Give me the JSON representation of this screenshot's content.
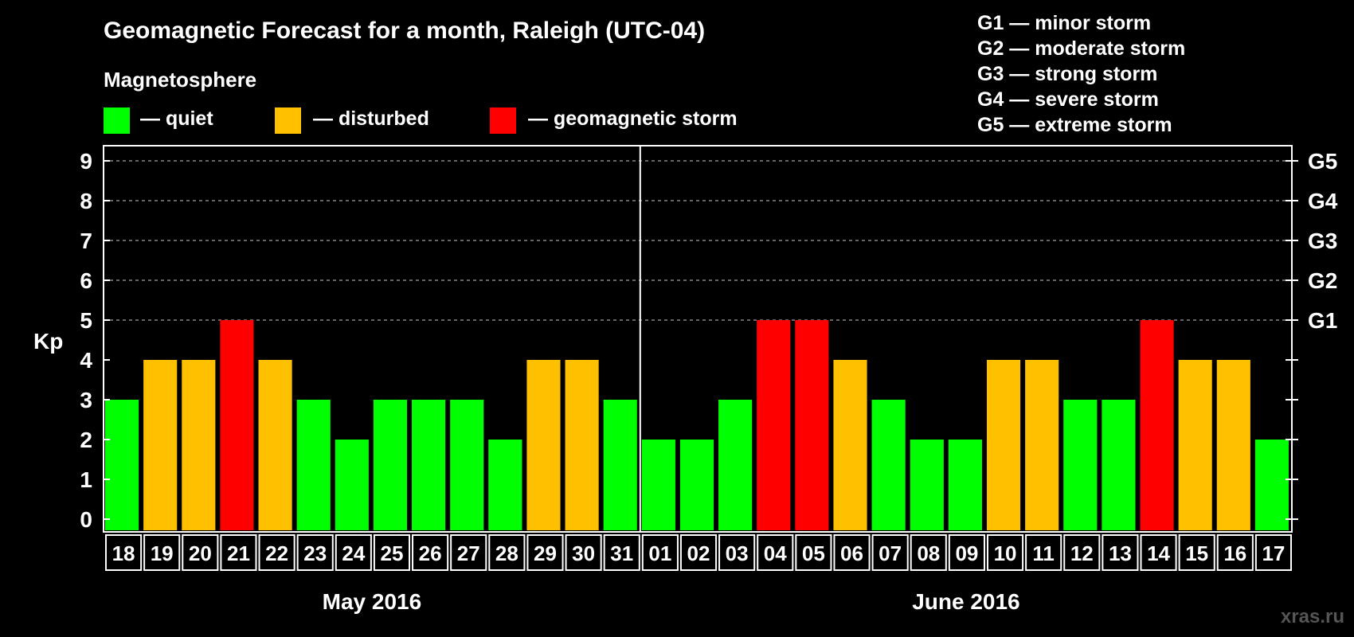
{
  "colors": {
    "background": "#000000",
    "quiet": "#00ff00",
    "disturbed": "#ffc000",
    "storm": "#ff0000",
    "axis": "#ffffff",
    "grid": "#888888"
  },
  "legend": {
    "heading": "Magnetosphere",
    "items": [
      {
        "key": "quiet",
        "label": "— quiet"
      },
      {
        "key": "disturbed",
        "label": "— disturbed"
      },
      {
        "key": "storm",
        "label": "— geomagnetic storm"
      }
    ]
  },
  "g_legend": [
    "G1 — minor storm",
    "G2 — moderate storm",
    "G3 — strong storm",
    "G4 — severe storm",
    "G5 — extreme storm"
  ],
  "watermark": "xras.ru",
  "chart_data": {
    "type": "bar",
    "title": "Geomagnetic Forecast for a month, Raleigh (UTC-04)",
    "ylabel": "Kp",
    "ylim": [
      0,
      9
    ],
    "yticks": [
      0,
      1,
      2,
      3,
      4,
      5,
      6,
      7,
      8,
      9
    ],
    "right_ticks": [
      {
        "value": 5,
        "label": "G1"
      },
      {
        "value": 6,
        "label": "G2"
      },
      {
        "value": 7,
        "label": "G3"
      },
      {
        "value": 8,
        "label": "G4"
      },
      {
        "value": 9,
        "label": "G5"
      }
    ],
    "grid": "dashed horizontal at Kp 5-9",
    "categories": [
      "18",
      "19",
      "20",
      "21",
      "22",
      "23",
      "24",
      "25",
      "26",
      "27",
      "28",
      "29",
      "30",
      "31",
      "01",
      "02",
      "03",
      "04",
      "05",
      "06",
      "07",
      "08",
      "09",
      "10",
      "11",
      "12",
      "13",
      "14",
      "15",
      "16",
      "17"
    ],
    "values": [
      3,
      4,
      4,
      5,
      4,
      3,
      2,
      3,
      3,
      3,
      2,
      4,
      4,
      3,
      2,
      2,
      3,
      5,
      5,
      4,
      3,
      2,
      2,
      4,
      4,
      3,
      3,
      5,
      4,
      4,
      2
    ],
    "status": [
      "quiet",
      "disturbed",
      "disturbed",
      "storm",
      "disturbed",
      "quiet",
      "quiet",
      "quiet",
      "quiet",
      "quiet",
      "quiet",
      "disturbed",
      "disturbed",
      "quiet",
      "quiet",
      "quiet",
      "quiet",
      "storm",
      "storm",
      "disturbed",
      "quiet",
      "quiet",
      "quiet",
      "disturbed",
      "disturbed",
      "quiet",
      "quiet",
      "storm",
      "disturbed",
      "disturbed",
      "quiet"
    ],
    "months": [
      {
        "label": "May 2016",
        "start": 0,
        "end": 13
      },
      {
        "label": "June 2016",
        "start": 14,
        "end": 30
      }
    ]
  }
}
